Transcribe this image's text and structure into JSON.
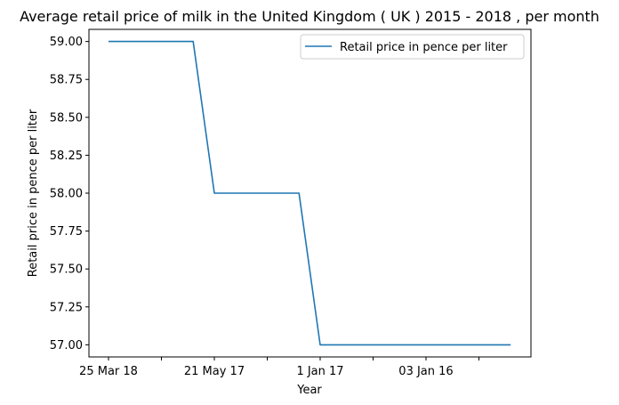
{
  "chart_data": {
    "type": "line",
    "title": "Average retail price of milk in the United Kingdom ( UK ) 2015 - 2018 , per month",
    "xlabel": "Year",
    "ylabel": "Retail price in pence per liter",
    "categories": [
      "25 Mar 18",
      "",
      "",
      "",
      "",
      "21 May 17",
      "",
      "",
      "",
      "",
      "1 Jan 17",
      "",
      "",
      "",
      "",
      "03 Jan 16",
      "",
      "",
      "",
      ""
    ],
    "x_tick_labels": [
      "25 Mar 18",
      "21 May 17",
      "1 Jan 17",
      "03 Jan 16"
    ],
    "series": [
      {
        "name": "Retail price in pence per liter",
        "color": "#1f77b4",
        "values": [
          59,
          59,
          59,
          59,
          59,
          58,
          58,
          58,
          58,
          58,
          57,
          57,
          57,
          57,
          57,
          57,
          57,
          57,
          57,
          57
        ]
      }
    ],
    "ylim": [
      56.92,
      59.08
    ],
    "yticks": [
      "57.00",
      "57.25",
      "57.50",
      "57.75",
      "58.00",
      "58.25",
      "58.50",
      "58.75",
      "59.00"
    ],
    "legend_position": "top-right",
    "grid": false
  }
}
